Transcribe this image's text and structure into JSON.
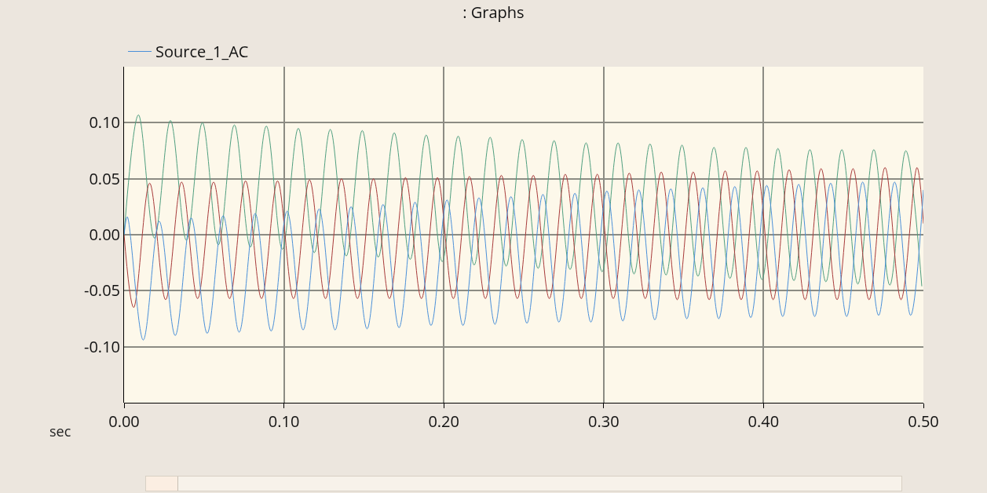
{
  "chart_data": {
    "type": "line",
    "title": ": Graphs",
    "xlabel": "sec",
    "xlim": [
      0,
      0.5
    ],
    "ylim": [
      -0.15,
      0.15
    ],
    "xticks": [
      {
        "value": 0,
        "label": "0.00"
      },
      {
        "value": 0.1,
        "label": "0.10"
      },
      {
        "value": 0.2,
        "label": "0.20"
      },
      {
        "value": 0.3,
        "label": "0.30"
      },
      {
        "value": 0.4,
        "label": "0.40"
      },
      {
        "value": 0.5,
        "label": "0.50"
      }
    ],
    "yticks": [
      {
        "value": -0.1,
        "label": "-0.10"
      },
      {
        "value": -0.05,
        "label": "-0.05"
      },
      {
        "value": 0,
        "label": "0.00"
      },
      {
        "value": 0.05,
        "label": "0.05"
      },
      {
        "value": 0.1,
        "label": "0.10"
      }
    ],
    "grid": true,
    "legend": "top left",
    "marker": "none",
    "line_style": "solid",
    "series": [
      {
        "color": "#4f9f7f",
        "x": [
          0,
          0.009,
          0.019,
          0.029,
          0.039,
          0.049,
          0.059,
          0.069,
          0.079,
          0.089,
          0.099,
          0.109,
          0.119,
          0.129,
          0.139,
          0.149,
          0.159,
          0.169,
          0.179,
          0.189,
          0.199,
          0.209,
          0.219,
          0.229,
          0.239,
          0.249,
          0.259,
          0.269,
          0.279,
          0.289,
          0.299,
          0.309,
          0.319,
          0.329,
          0.339,
          0.349,
          0.359,
          0.369,
          0.379,
          0.389,
          0.399,
          0.409,
          0.419,
          0.429,
          0.439,
          0.449,
          0.459,
          0.469,
          0.479,
          0.489,
          0.499
        ],
        "values": [
          0,
          0.107,
          -0.003,
          0.102,
          -0.005,
          0.1,
          -0.009,
          0.098,
          -0.011,
          0.097,
          -0.013,
          0.095,
          -0.016,
          0.094,
          -0.019,
          0.093,
          -0.02,
          0.091,
          -0.022,
          0.089,
          -0.024,
          0.088,
          -0.027,
          0.087,
          -0.028,
          0.085,
          -0.03,
          0.084,
          -0.031,
          0.082,
          -0.033,
          0.082,
          -0.035,
          0.081,
          -0.036,
          0.08,
          -0.037,
          0.078,
          -0.039,
          0.078,
          -0.04,
          0.077,
          -0.041,
          0.076,
          -0.042,
          0.076,
          -0.044,
          0.076,
          -0.045,
          0.075,
          -0.046
        ]
      },
      {
        "color": "#a83a3a",
        "x": [
          0,
          0.006,
          0.016,
          0.026,
          0.036,
          0.046,
          0.056,
          0.066,
          0.076,
          0.086,
          0.096,
          0.106,
          0.116,
          0.126,
          0.136,
          0.146,
          0.156,
          0.166,
          0.176,
          0.186,
          0.196,
          0.206,
          0.216,
          0.226,
          0.236,
          0.246,
          0.256,
          0.266,
          0.276,
          0.286,
          0.296,
          0.306,
          0.316,
          0.326,
          0.336,
          0.346,
          0.356,
          0.366,
          0.376,
          0.386,
          0.396,
          0.406,
          0.416,
          0.426,
          0.436,
          0.446,
          0.456,
          0.466,
          0.476,
          0.486,
          0.496,
          0.5
        ],
        "values": [
          0,
          -0.065,
          0.046,
          -0.058,
          0.047,
          -0.057,
          0.047,
          -0.057,
          0.048,
          -0.057,
          0.048,
          -0.057,
          0.049,
          -0.057,
          0.05,
          -0.057,
          0.05,
          -0.057,
          0.051,
          -0.057,
          0.051,
          -0.057,
          0.052,
          -0.057,
          0.053,
          -0.057,
          0.053,
          -0.057,
          0.054,
          -0.057,
          0.054,
          -0.057,
          0.055,
          -0.057,
          0.056,
          -0.058,
          0.056,
          -0.058,
          0.057,
          -0.058,
          0.057,
          -0.058,
          0.058,
          -0.058,
          0.059,
          -0.058,
          0.059,
          -0.058,
          0.06,
          -0.058,
          0.06,
          0.01
        ]
      },
      {
        "name": "Source_1_AC",
        "color": "#4a90d9",
        "x": [
          0,
          0.002,
          0.012,
          0.022,
          0.032,
          0.042,
          0.052,
          0.062,
          0.072,
          0.082,
          0.092,
          0.102,
          0.112,
          0.122,
          0.132,
          0.142,
          0.152,
          0.162,
          0.172,
          0.182,
          0.192,
          0.202,
          0.212,
          0.222,
          0.232,
          0.242,
          0.252,
          0.262,
          0.272,
          0.282,
          0.292,
          0.302,
          0.312,
          0.322,
          0.332,
          0.342,
          0.352,
          0.362,
          0.372,
          0.382,
          0.392,
          0.402,
          0.412,
          0.422,
          0.432,
          0.442,
          0.452,
          0.462,
          0.472,
          0.482,
          0.492,
          0.5
        ],
        "values": [
          0,
          0.016,
          -0.094,
          0.012,
          -0.09,
          0.015,
          -0.088,
          0.017,
          -0.087,
          0.019,
          -0.086,
          0.021,
          -0.085,
          0.023,
          -0.085,
          0.025,
          -0.084,
          0.027,
          -0.083,
          0.029,
          -0.081,
          0.031,
          -0.081,
          0.033,
          -0.08,
          0.034,
          -0.079,
          0.036,
          -0.078,
          0.037,
          -0.078,
          0.039,
          -0.077,
          0.04,
          -0.076,
          0.041,
          -0.075,
          0.042,
          -0.075,
          0.043,
          -0.074,
          0.044,
          -0.073,
          0.045,
          -0.073,
          0.046,
          -0.073,
          0.047,
          -0.072,
          0.047,
          -0.072,
          0.04
        ]
      }
    ]
  }
}
